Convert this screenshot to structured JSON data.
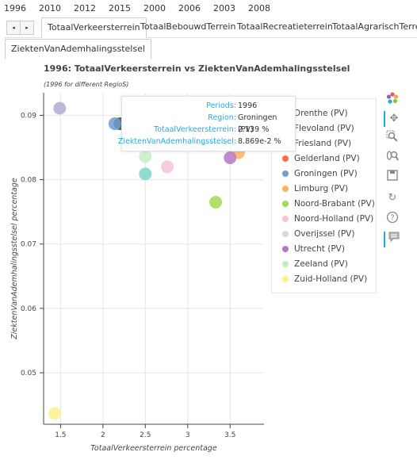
{
  "year_tabs": [
    "1996",
    "2010",
    "2012",
    "2015",
    "2000",
    "2006",
    "2003",
    "2008"
  ],
  "nav": {
    "prev": "◂",
    "next": "▸"
  },
  "variable_tabs": [
    "TotaalVerkeersterrein",
    "TotaalBebouwdTerrein",
    "TotaalRecreatieterrein",
    "TotaalAgrarischTerrein"
  ],
  "variable_tab_second": "ZiektenVanAdemhalingsstelsel",
  "plot": {
    "title": "1996: TotaalVerkeersterrein vs ZiektenVanAdemhalingsstelsel",
    "subtitle": "(1996 for different RegioS)"
  },
  "chart_data": {
    "type": "scatter",
    "title": "1996: TotaalVerkeersterrein vs ZiektenVanAdemhalingsstelsel",
    "subtitle": "(1996 for different RegioS)",
    "xlabel": "TotaalVerkeersterrein percentage",
    "ylabel": "ZiektenVanAdemhalingsstelsel percentage",
    "xlim": [
      1.3,
      3.9
    ],
    "ylim": [
      0.042,
      0.0935
    ],
    "x_ticks": [
      "1.5",
      "2",
      "2.5",
      "3",
      "3.5"
    ],
    "y_ticks": [
      "0.05",
      "0.06",
      "0.07",
      "0.08",
      "0.09"
    ],
    "grid": true,
    "legend_position": "right",
    "series": [
      {
        "name": "Drenthe (PV)",
        "color": "#b2abd2",
        "points": [
          [
            1.49,
            0.0911
          ]
        ]
      },
      {
        "name": "Flevoland (PV)",
        "color": "#4c4c4c",
        "points": [
          [
            2.2,
            0.0887
          ]
        ]
      },
      {
        "name": "Friesland (PV)",
        "color": "#5fbcd3",
        "points": [
          [
            3.55,
            0.0862
          ]
        ]
      },
      {
        "name": "Gelderland (PV)",
        "color": "#f46d43",
        "points": [
          [
            3.1,
            0.0901
          ]
        ]
      },
      {
        "name": "Groningen (PV)",
        "color": "#6f9fcf",
        "points": [
          [
            2.14,
            0.0887
          ]
        ]
      },
      {
        "name": "Limburg (PV)",
        "color": "#fdae61",
        "points": [
          [
            3.6,
            0.0842
          ]
        ]
      },
      {
        "name": "Noord-Brabant (PV)",
        "color": "#a6d854",
        "points": [
          [
            3.33,
            0.0765
          ]
        ]
      },
      {
        "name": "Noord-Holland (PV)",
        "color": "#f7c3da",
        "points": [
          [
            2.76,
            0.082
          ]
        ]
      },
      {
        "name": "Overijssel (PV)",
        "color": "#d9d9d9",
        "points": [
          [
            3.07,
            0.0901
          ]
        ]
      },
      {
        "name": "Utrecht (PV)",
        "color": "#b578c4",
        "points": [
          [
            3.5,
            0.0834
          ]
        ]
      },
      {
        "name": "Zeeland (PV)",
        "color": "#c9ebc8",
        "points": [
          [
            2.5,
            0.0836
          ]
        ]
      },
      {
        "name": "Zuid-Holland (PV)",
        "color": "#fdf18a",
        "points": [
          [
            1.43,
            0.0437
          ]
        ]
      },
      {
        "name": "",
        "color": "#7fd6c6",
        "points": [
          [
            2.5,
            0.0809
          ]
        ]
      }
    ]
  },
  "tooltip": {
    "rows": [
      {
        "key": "Periods:",
        "value": "1996"
      },
      {
        "key": "Region:",
        "value": "Groningen (PV)"
      },
      {
        "key": "TotaalVerkeersterrein:",
        "value": "2.139 %"
      },
      {
        "key": "ZiektenVanAdemhalingsstelsel:",
        "value": "8.869e-2 %"
      }
    ]
  },
  "toolbar": [
    "bokeh-logo-icon",
    "pan-icon",
    "box-zoom-icon",
    "wheel-zoom-icon",
    "save-icon",
    "reset-icon",
    "help-icon",
    "hover-icon"
  ]
}
